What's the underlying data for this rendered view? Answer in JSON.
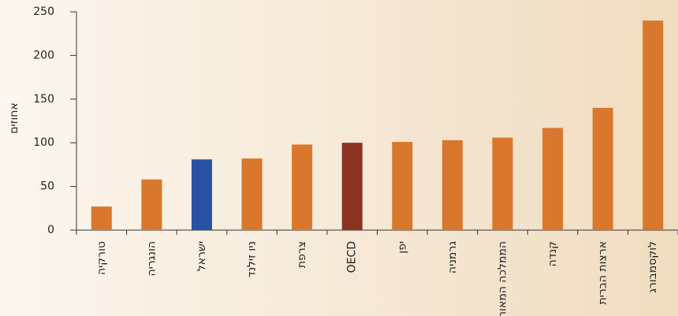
{
  "chart_data": {
    "type": "bar",
    "y_label": "אחוזים",
    "categories": [
      "טורקיה",
      "הונגריה",
      "ישראל",
      "ניו זילנד",
      "צרפת",
      "OECD",
      "יפן",
      "גרמניה",
      "הממלכה המאוחדת",
      "קנדה",
      "ארצות הברית",
      "לוקסמבורג"
    ],
    "values": [
      27,
      58,
      81,
      82,
      98,
      100,
      101,
      103,
      106,
      117,
      140,
      240
    ],
    "colors": [
      "#d9782d",
      "#d9782d",
      "#2a52a3",
      "#d9782d",
      "#d9782d",
      "#8b3320",
      "#d9782d",
      "#d9782d",
      "#d9782d",
      "#d9782d",
      "#d9782d",
      "#d9782d"
    ],
    "ylim": [
      0,
      250
    ],
    "yticks": [
      0,
      50,
      100,
      150,
      200,
      250
    ],
    "grid": false
  }
}
